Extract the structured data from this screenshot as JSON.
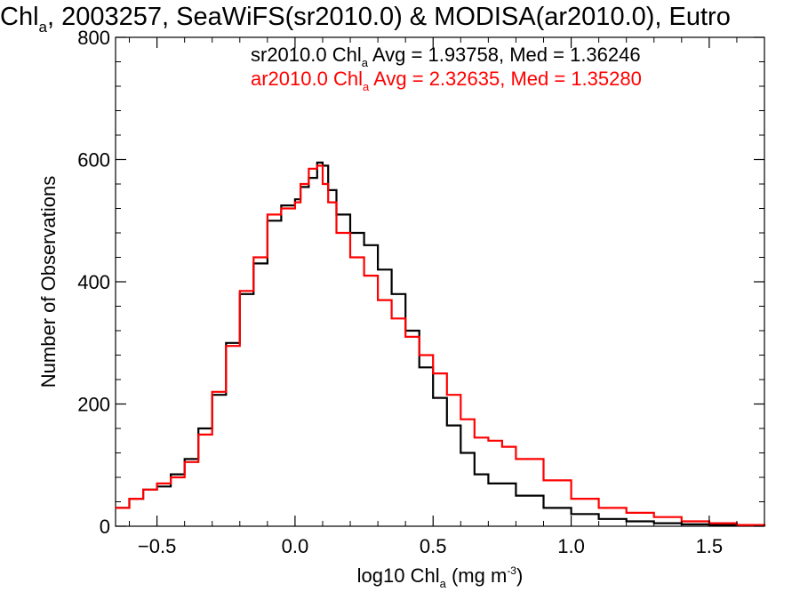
{
  "chart_data": {
    "type": "line",
    "title": {
      "base": "Chl",
      "sub": "a",
      "rest": ", 2003257, SeaWiFS(sr2010.0) & MODISA(ar2010.0), Eutro"
    },
    "xlabel": {
      "base": "log10 Chl",
      "sub": "a",
      "mid": " (mg m",
      "sup": "-3",
      "end": ")"
    },
    "ylabel": "Number of Observations",
    "xlim": [
      -0.65,
      1.7
    ],
    "ylim": [
      0,
      800
    ],
    "xticks": [
      -0.5,
      0.0,
      0.5,
      1.0,
      1.5
    ],
    "xtick_labels": [
      "−0.5",
      "0.0",
      "0.5",
      "1.0",
      "1.5"
    ],
    "yticks": [
      0,
      200,
      400,
      600,
      800
    ],
    "ytick_labels": [
      "0",
      "200",
      "400",
      "600",
      "800"
    ],
    "grid": false,
    "step": "histogram",
    "legend_position": "top-center",
    "series": [
      {
        "name": "sr2010.0",
        "color": "#000000",
        "legend": {
          "pre": "sr2010.0 Chl",
          "sub": "a",
          "post": " Avg = 1.93758, Med = 1.36246"
        },
        "x": [
          -0.65,
          -0.6,
          -0.55,
          -0.5,
          -0.45,
          -0.4,
          -0.35,
          -0.3,
          -0.25,
          -0.2,
          -0.15,
          -0.1,
          -0.05,
          0.0,
          0.02,
          0.05,
          0.08,
          0.1,
          0.12,
          0.15,
          0.2,
          0.25,
          0.3,
          0.35,
          0.4,
          0.45,
          0.5,
          0.55,
          0.6,
          0.65,
          0.7,
          0.8,
          0.9,
          1.0,
          1.1,
          1.2,
          1.3,
          1.4,
          1.5,
          1.6,
          1.7
        ],
        "y": [
          30,
          45,
          60,
          65,
          85,
          110,
          160,
          215,
          300,
          380,
          430,
          500,
          525,
          535,
          555,
          570,
          595,
          590,
          550,
          510,
          480,
          460,
          420,
          380,
          320,
          260,
          210,
          165,
          120,
          85,
          70,
          50,
          30,
          20,
          12,
          8,
          5,
          3,
          2,
          1,
          0
        ]
      },
      {
        "name": "ar2010.0",
        "color": "#ff0000",
        "legend": {
          "pre": "ar2010.0 Chl",
          "sub": "a",
          "post": " Avg = 2.32635, Med = 1.35280"
        },
        "x": [
          -0.65,
          -0.6,
          -0.55,
          -0.5,
          -0.45,
          -0.4,
          -0.35,
          -0.3,
          -0.25,
          -0.2,
          -0.15,
          -0.1,
          -0.05,
          0.0,
          0.02,
          0.05,
          0.08,
          0.1,
          0.12,
          0.15,
          0.2,
          0.25,
          0.3,
          0.35,
          0.4,
          0.45,
          0.5,
          0.55,
          0.6,
          0.65,
          0.7,
          0.75,
          0.8,
          0.9,
          1.0,
          1.1,
          1.2,
          1.3,
          1.4,
          1.5,
          1.6,
          1.7
        ],
        "y": [
          30,
          45,
          60,
          70,
          80,
          105,
          150,
          220,
          295,
          385,
          440,
          510,
          520,
          530,
          560,
          585,
          590,
          560,
          530,
          480,
          440,
          410,
          370,
          340,
          310,
          280,
          250,
          215,
          175,
          145,
          140,
          130,
          110,
          75,
          45,
          30,
          22,
          15,
          8,
          5,
          2,
          0
        ]
      }
    ]
  }
}
